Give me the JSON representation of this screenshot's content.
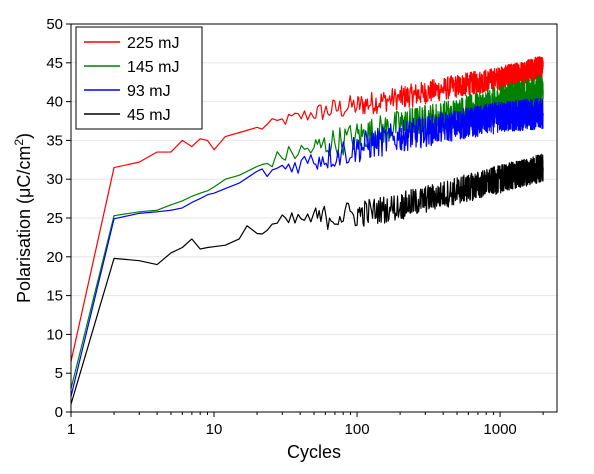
{
  "chart_data": {
    "type": "line",
    "xlabel": "Cycles",
    "ylabel": "Polarisation (μC/cm",
    "ylabel_sup": "2",
    "ylabel_close": ")",
    "x_scale": "log",
    "xlim": [
      1,
      2500
    ],
    "ylim": [
      0,
      50
    ],
    "x_ticks": [
      1,
      10,
      100,
      1000
    ],
    "x_tick_labels": [
      "1",
      "10",
      "100",
      "1000"
    ],
    "y_ticks": [
      0,
      5,
      10,
      15,
      20,
      25,
      30,
      35,
      40,
      45,
      50
    ],
    "y_tick_labels": [
      "0",
      "5",
      "10",
      "15",
      "20",
      "25",
      "30",
      "35",
      "40",
      "45",
      "50"
    ],
    "grid": "horizontal",
    "legend_position": "top-left",
    "series": [
      {
        "name": "225 mJ",
        "color": "#ff0000",
        "x": [
          1,
          2,
          3,
          4,
          5,
          6,
          7,
          8,
          9,
          10,
          12,
          15,
          20,
          30,
          50,
          100,
          200,
          500,
          1000,
          2000
        ],
        "y": [
          6.5,
          31.5,
          32.2,
          33.5,
          33.5,
          35.0,
          34.2,
          35.2,
          35.0,
          33.8,
          35.5,
          36.0,
          36.5,
          37.5,
          38.5,
          39.5,
          40.5,
          42.0,
          43.0,
          44.5
        ],
        "noise": 1.5
      },
      {
        "name": "145 mJ",
        "color": "#008000",
        "x": [
          1,
          2,
          3,
          4,
          5,
          6,
          7,
          8,
          9,
          10,
          12,
          15,
          20,
          30,
          50,
          100,
          200,
          500,
          1000,
          2000
        ],
        "y": [
          3.0,
          25.3,
          25.8,
          26.0,
          26.7,
          27.2,
          27.8,
          28.2,
          28.5,
          29.0,
          30.0,
          30.5,
          31.5,
          33.0,
          34.0,
          35.5,
          37.0,
          38.5,
          40.0,
          41.5
        ],
        "noise": 2.0
      },
      {
        "name": "93 mJ",
        "color": "#0000ff",
        "x": [
          1,
          2,
          3,
          4,
          5,
          6,
          7,
          8,
          9,
          10,
          12,
          15,
          20,
          30,
          50,
          100,
          200,
          500,
          1000,
          2000
        ],
        "y": [
          2.0,
          24.9,
          25.6,
          25.8,
          26.0,
          26.3,
          27.0,
          27.5,
          28.0,
          28.2,
          28.8,
          29.5,
          30.5,
          31.5,
          32.5,
          34.0,
          35.5,
          37.0,
          38.0,
          38.5
        ],
        "noise": 2.0
      },
      {
        "name": "45 mJ",
        "color": "#000000",
        "x": [
          1,
          2,
          3,
          4,
          5,
          6,
          7,
          8,
          9,
          10,
          12,
          15,
          17,
          20,
          30,
          50,
          100,
          200,
          500,
          1000,
          2000
        ],
        "y": [
          1.0,
          19.8,
          19.5,
          19.0,
          20.5,
          21.2,
          22.3,
          21.0,
          21.2,
          21.3,
          21.5,
          22.3,
          24.0,
          22.8,
          24.5,
          25.0,
          25.5,
          26.5,
          28.5,
          30.0,
          31.5
        ],
        "noise": 1.8
      }
    ]
  }
}
